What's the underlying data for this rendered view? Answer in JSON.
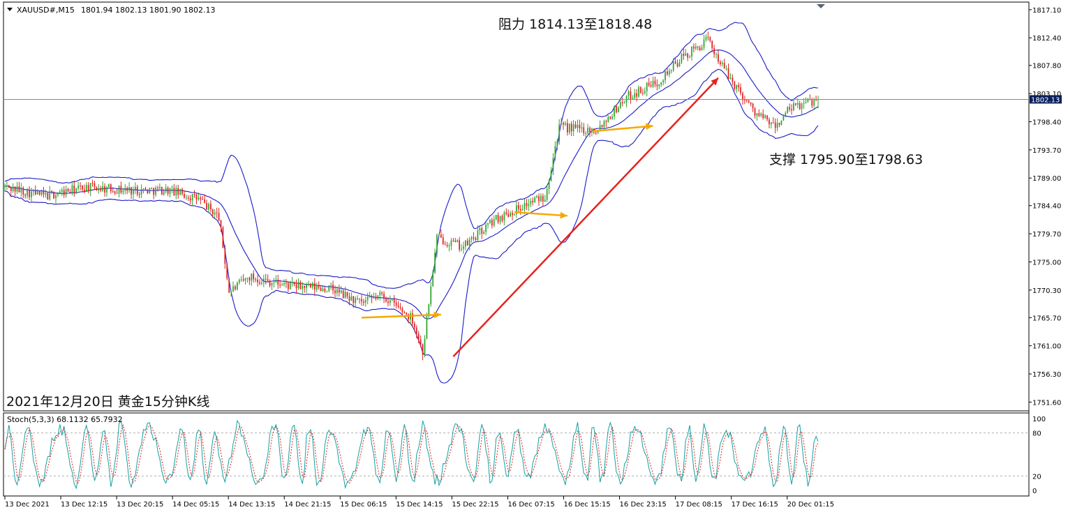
{
  "chart_data": [
    {
      "type": "candlestick",
      "symbol_header": "XAUUSD#,M15",
      "ohlc_header": "1801.94 1802.13 1801.90 1802.13",
      "overlays": [
        "Bollinger Bands"
      ],
      "current_price": "1802.13",
      "y_ticks": [
        "1817.10",
        "1812.40",
        "1807.80",
        "1803.10",
        "1798.40",
        "1793.70",
        "1789.00",
        "1784.40",
        "1779.70",
        "1775.00",
        "1770.30",
        "1765.70",
        "1761.00",
        "1756.30",
        "1751.60"
      ],
      "ylim": [
        1750.6,
        1817.9
      ],
      "x_ticks": [
        "13 Dec 2021",
        "13 Dec 12:15",
        "13 Dec 20:15",
        "14 Dec 05:15",
        "14 Dec 13:15",
        "14 Dec 21:15",
        "15 Dec 06:15",
        "15 Dec 14:15",
        "15 Dec 22:15",
        "16 Dec 07:15",
        "16 Dec 15:15",
        "16 Dec 23:15",
        "17 Dec 08:15",
        "17 Dec 16:15",
        "20 Dec 01:15"
      ],
      "approx_path": [
        {
          "bar": 0,
          "price": 1787.5
        },
        {
          "bar": 20,
          "price": 1786.0
        },
        {
          "bar": 40,
          "price": 1787.5
        },
        {
          "bar": 60,
          "price": 1787.0
        },
        {
          "bar": 80,
          "price": 1787.0
        },
        {
          "bar": 95,
          "price": 1785.5
        },
        {
          "bar": 105,
          "price": 1782.5
        },
        {
          "bar": 110,
          "price": 1770.0
        },
        {
          "bar": 120,
          "price": 1772.5
        },
        {
          "bar": 140,
          "price": 1771.0
        },
        {
          "bar": 160,
          "price": 1770.5
        },
        {
          "bar": 175,
          "price": 1768.0
        },
        {
          "bar": 185,
          "price": 1769.5
        },
        {
          "bar": 200,
          "price": 1765.5
        },
        {
          "bar": 205,
          "price": 1760.0
        },
        {
          "bar": 212,
          "price": 1779.0
        },
        {
          "bar": 225,
          "price": 1777.5
        },
        {
          "bar": 240,
          "price": 1782.0
        },
        {
          "bar": 255,
          "price": 1784.5
        },
        {
          "bar": 265,
          "price": 1786.0
        },
        {
          "bar": 272,
          "price": 1797.5
        },
        {
          "bar": 290,
          "price": 1797.0
        },
        {
          "bar": 305,
          "price": 1802.5
        },
        {
          "bar": 320,
          "price": 1805.0
        },
        {
          "bar": 332,
          "price": 1809.0
        },
        {
          "bar": 345,
          "price": 1812.0
        },
        {
          "bar": 355,
          "price": 1806.0
        },
        {
          "bar": 368,
          "price": 1800.0
        },
        {
          "bar": 378,
          "price": 1797.5
        },
        {
          "bar": 385,
          "price": 1800.5
        },
        {
          "bar": 398,
          "price": 1802.1
        }
      ],
      "annotations": [
        {
          "text": "阻力 1814.13至1818.48"
        },
        {
          "text": "支撑 1795.90至1798.63"
        },
        {
          "text": "2021年12月20日 黄金15分钟K线"
        }
      ],
      "colors": {
        "up": "#2ea42e",
        "down": "#e02020",
        "bands": "#1a1ac8",
        "trend_arrow": "#e8211b",
        "support_arrows": "#f5a800",
        "current_line": "#7f8c8d"
      }
    },
    {
      "type": "line",
      "label": "Stoch(5,3,3) 68.1132 65.7932",
      "y_ticks": [
        "100",
        "80",
        "20",
        "0"
      ],
      "ylim": [
        0,
        100
      ],
      "levels": [
        80,
        20
      ],
      "series": [
        {
          "name": "%K",
          "color": "#14a0a0"
        },
        {
          "name": "%D",
          "color": "#e02020"
        }
      ],
      "last_values": [
        68.1132,
        65.7932
      ]
    }
  ]
}
